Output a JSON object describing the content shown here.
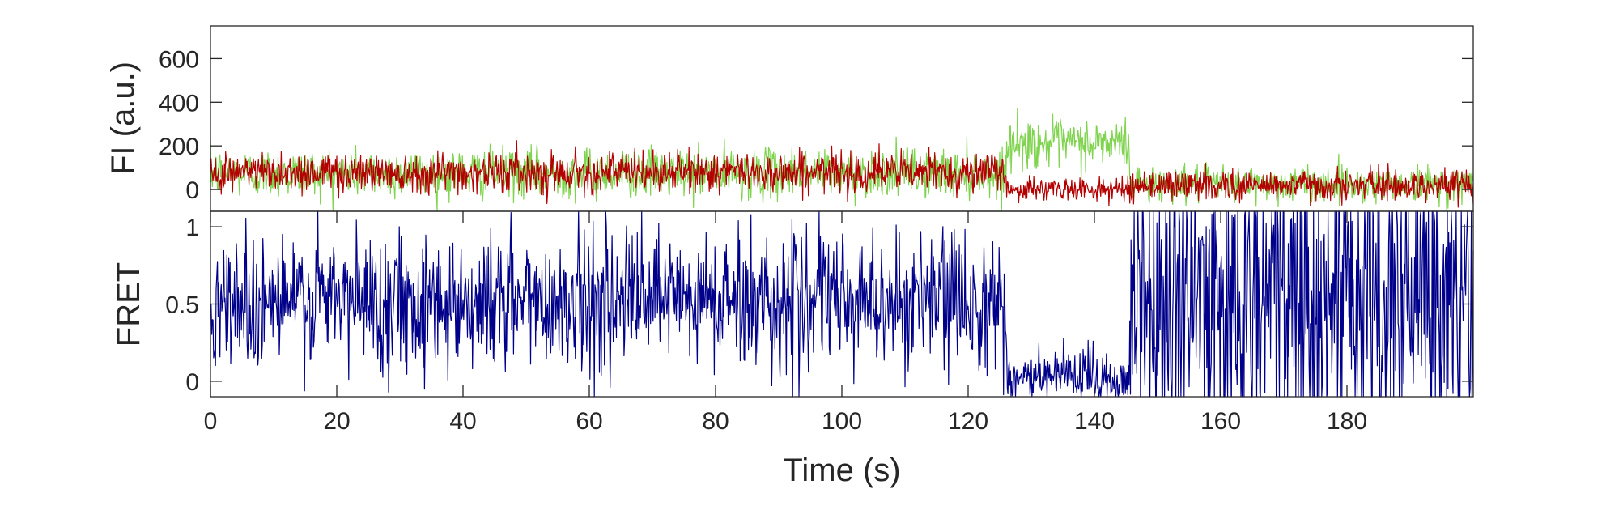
{
  "chart_data": [
    {
      "type": "line",
      "panel": "top",
      "ylabel": "FI (a.u.)",
      "xlim": [
        0,
        200
      ],
      "ylim": [
        -100,
        750
      ],
      "yticks": [
        0,
        200,
        400,
        600
      ],
      "ytick_labels": [
        "0",
        "200",
        "400",
        "600"
      ],
      "grid": false,
      "series": [
        {
          "color": "#7fd34e",
          "segments": [
            {
              "t0": 0,
              "t1": 126,
              "mean": 75,
              "noise": 55
            },
            {
              "t0": 126,
              "t1": 145.5,
              "mean": 210,
              "noise": 55
            },
            {
              "t0": 145.5,
              "t1": 200,
              "mean": 25,
              "noise": 40
            }
          ]
        },
        {
          "color": "#b30000",
          "segments": [
            {
              "t0": 0,
              "t1": 126,
              "mean": 80,
              "noise": 45
            },
            {
              "t0": 126,
              "t1": 145.5,
              "mean": 0,
              "noise": 25
            },
            {
              "t0": 145.5,
              "t1": 200,
              "mean": 20,
              "noise": 35
            }
          ]
        }
      ]
    },
    {
      "type": "line",
      "panel": "bottom",
      "xlabel": "Time (s)",
      "ylabel": "FRET",
      "xlim": [
        0,
        200
      ],
      "ylim": [
        -0.1,
        1.1
      ],
      "xticks": [
        0,
        20,
        40,
        60,
        80,
        100,
        120,
        140,
        160,
        180
      ],
      "xtick_labels": [
        "0",
        "20",
        "40",
        "60",
        "80",
        "100",
        "120",
        "140",
        "160",
        "180"
      ],
      "yticks": [
        0,
        0.5,
        1
      ],
      "ytick_labels": [
        "0",
        "0.5",
        "1"
      ],
      "grid": false,
      "series": [
        {
          "color": "#00008b",
          "segments": [
            {
              "t0": 0,
              "t1": 126,
              "mean": 0.52,
              "noise": 0.22
            },
            {
              "t0": 126,
              "t1": 145.5,
              "mean": 0.02,
              "noise": 0.1
            },
            {
              "t0": 145.5,
              "t1": 200,
              "mean": 0.5,
              "noise": 0.55
            }
          ]
        }
      ]
    }
  ]
}
